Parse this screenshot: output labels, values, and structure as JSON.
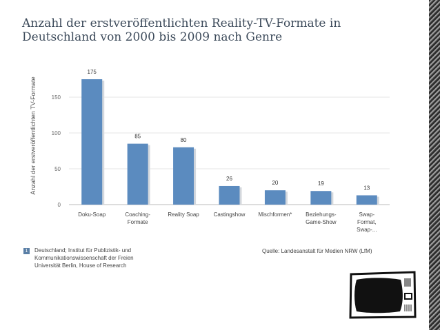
{
  "title_lines": [
    "Anzahl der erstveröffentlichten Reality-TV-Formate in",
    "Deutschland von 2000 bis 2009 nach Genre"
  ],
  "chart_data": {
    "type": "bar",
    "categories": [
      [
        "Doku-Soap"
      ],
      [
        "Coaching-",
        "Formate"
      ],
      [
        "Reality Soap"
      ],
      [
        "Castingshow"
      ],
      [
        "Mischformen*"
      ],
      [
        "Beziehungs-",
        "Game-Show"
      ],
      [
        "Swap-",
        "Format,",
        "Swap-..."
      ]
    ],
    "values": [
      175,
      85,
      80,
      26,
      20,
      19,
      13
    ],
    "ylabel": "Anzahl der erstveröffentlichten TV-Formate",
    "ylim": [
      0,
      175
    ],
    "yticks": [
      0,
      50,
      100,
      150
    ],
    "grid": true,
    "bar_color": "#5b8bbf"
  },
  "footnote": {
    "badge": "1",
    "lines": [
      "Deutschland; Institut für Publizistik- und",
      "Kommunikationswissenschaft der Freien",
      "Universität Berlin, House of Research"
    ]
  },
  "source": "Quelle: Landesanstalt für Medien NRW (LfM)",
  "decor": {
    "tv_icon": "retro-tv-icon",
    "stripe_pattern": "diagonal-stripes"
  }
}
